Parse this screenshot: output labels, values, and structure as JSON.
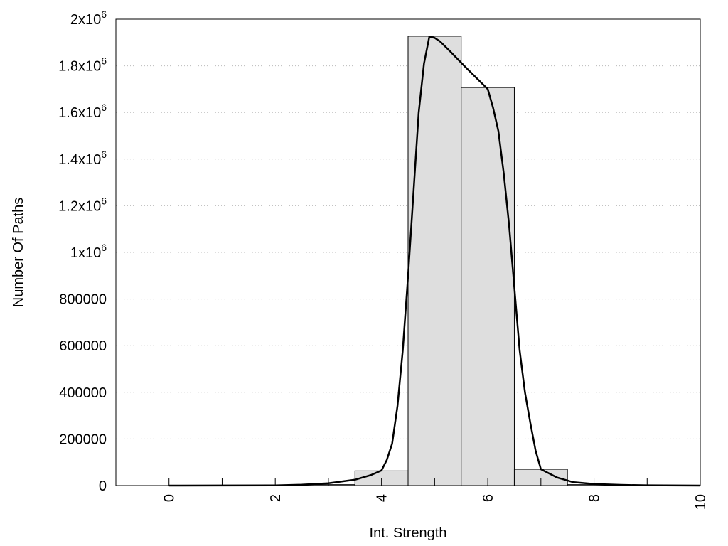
{
  "chart_data": {
    "type": "bar",
    "title": "",
    "xlabel": "Int. Strength",
    "ylabel": "Number Of Paths",
    "xlim": [
      -1,
      10
    ],
    "ylim": [
      0,
      2000000
    ],
    "grid": "horizontal-dotted",
    "xticks": [
      0,
      2,
      4,
      6,
      8,
      10
    ],
    "xtick_labels": [
      "0",
      "2",
      "4",
      "6",
      "8",
      "10"
    ],
    "minor_xticks": [
      0,
      1,
      2,
      3,
      4,
      5,
      6,
      7,
      8,
      9,
      10
    ],
    "yticks": [
      0,
      200000,
      400000,
      600000,
      800000,
      1000000,
      1200000,
      1400000,
      1600000,
      1800000,
      2000000
    ],
    "ytick_labels": [
      {
        "base": "0",
        "exp": ""
      },
      {
        "base": "200000",
        "exp": ""
      },
      {
        "base": "400000",
        "exp": ""
      },
      {
        "base": "600000",
        "exp": ""
      },
      {
        "base": "800000",
        "exp": ""
      },
      {
        "base": "1x10",
        "exp": "6"
      },
      {
        "base": "1.2x10",
        "exp": "6"
      },
      {
        "base": "1.4x10",
        "exp": "6"
      },
      {
        "base": "1.6x10",
        "exp": "6"
      },
      {
        "base": "1.8x10",
        "exp": "6"
      },
      {
        "base": "2x10",
        "exp": "6"
      }
    ],
    "bars": {
      "x": [
        0,
        1,
        2,
        3,
        4,
        5,
        6,
        7,
        8,
        9,
        10
      ],
      "values": [
        0,
        0,
        0,
        4000,
        63000,
        1927000,
        1707000,
        70000,
        4000,
        0,
        0
      ],
      "width": 1,
      "color": "#dedede"
    },
    "curve": {
      "type": "line",
      "x": [
        0,
        1,
        2,
        2.5,
        3,
        3.5,
        3.8,
        4,
        4.1,
        4.2,
        4.3,
        4.4,
        4.5,
        4.6,
        4.7,
        4.8,
        4.9,
        5,
        5.1,
        5.3,
        5.6,
        5.8,
        6,
        6.1,
        6.2,
        6.3,
        6.4,
        6.5,
        6.6,
        6.7,
        6.8,
        6.9,
        7,
        7.3,
        7.6,
        8,
        8.5,
        9,
        10
      ],
      "y": [
        0,
        200,
        800,
        4000,
        10000,
        25000,
        45000,
        65000,
        110000,
        180000,
        340000,
        580000,
        900000,
        1250000,
        1600000,
        1810000,
        1925000,
        1920000,
        1905000,
        1860000,
        1790000,
        1745000,
        1700000,
        1620000,
        1520000,
        1340000,
        1120000,
        850000,
        580000,
        400000,
        270000,
        150000,
        70000,
        35000,
        15000,
        7000,
        3000,
        1000,
        0
      ],
      "color": "#000000"
    }
  }
}
